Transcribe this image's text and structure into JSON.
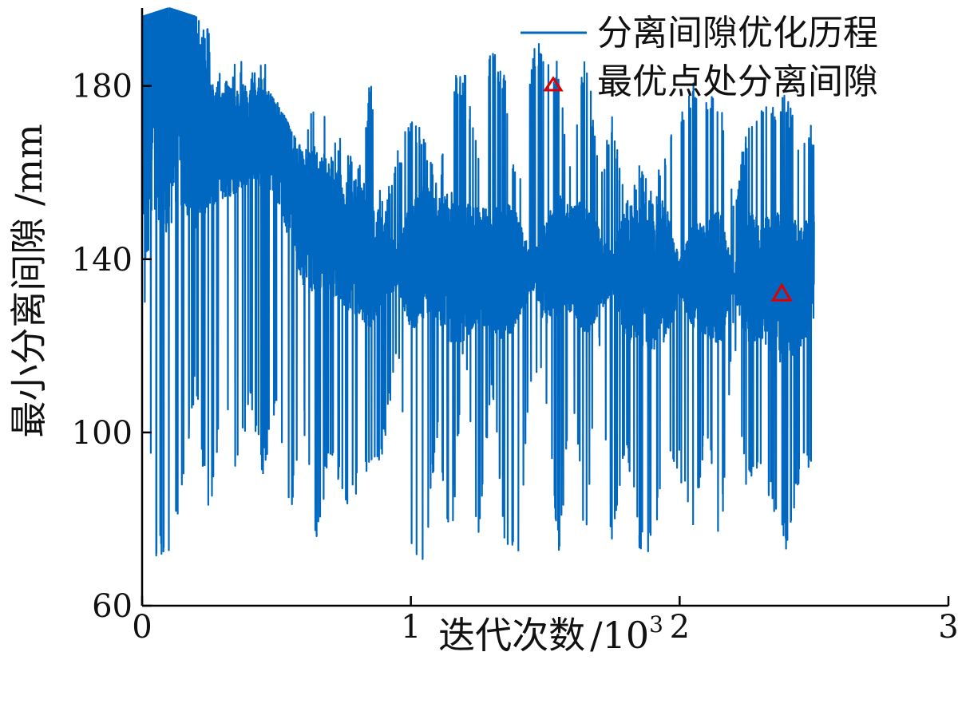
{
  "chart_data": {
    "type": "line",
    "title": "",
    "xlabel": "迭代次数",
    "xlabel_suffix": "/10",
    "xlabel_exponent": "3",
    "ylabel": "最小分离间隙 /mm",
    "xlim": [
      0,
      3
    ],
    "ylim": [
      60,
      198
    ],
    "xticks": [
      0,
      1,
      2,
      3
    ],
    "yticks": [
      60,
      100,
      140,
      180
    ],
    "grid": false,
    "legend_position": "top-right",
    "series": [
      {
        "name": "分离间隙优化历程",
        "kind": "line",
        "color": "#0068c0",
        "x": [
          0.0,
          0.05,
          0.1,
          0.15,
          0.2,
          0.25,
          0.3,
          0.35,
          0.4,
          0.45,
          0.5,
          0.55,
          0.6,
          0.65,
          0.7,
          0.75,
          0.8,
          0.85,
          0.9,
          0.95,
          1.0,
          1.05,
          1.1,
          1.15,
          1.2,
          1.25,
          1.3,
          1.35,
          1.4,
          1.45,
          1.5,
          1.55,
          1.6,
          1.65,
          1.7,
          1.75,
          1.8,
          1.85,
          1.9,
          1.95,
          2.0,
          2.05,
          2.1,
          2.15,
          2.2,
          2.25,
          2.3,
          2.35,
          2.4,
          2.45,
          2.5
        ],
        "y": [
          193,
          185,
          188,
          192,
          175,
          166,
          168,
          167,
          170,
          168,
          165,
          158,
          150,
          148,
          147,
          145,
          143,
          140,
          139,
          138,
          139,
          142,
          140,
          138,
          137,
          138,
          138,
          137,
          138,
          136,
          137,
          141,
          140,
          138,
          137,
          137,
          137,
          136,
          137,
          137,
          136,
          136,
          136,
          136,
          135,
          136,
          135,
          134,
          134,
          133,
          140
        ],
        "upper": [
          196,
          197,
          198,
          197,
          196,
          193,
          180,
          188,
          182,
          188,
          180,
          170,
          165,
          182,
          169,
          168,
          160,
          182,
          152,
          165,
          175,
          169,
          158,
          182,
          184,
          168,
          190,
          182,
          154,
          190,
          190,
          185,
          159,
          192,
          160,
          175,
          153,
          164,
          155,
          168,
          172,
          183,
          178,
          180,
          155,
          170,
          174,
          178,
          178,
          168,
          172
        ],
        "lower": [
          140,
          70,
          72,
          85,
          110,
          75,
          108,
          90,
          105,
          90,
          105,
          80,
          102,
          72,
          95,
          82,
          85,
          90,
          95,
          120,
          72,
          70,
          98,
          72,
          120,
          70,
          110,
          73,
          70,
          113,
          110,
          70,
          108,
          72,
          120,
          70,
          98,
          71,
          72,
          95,
          90,
          75,
          100,
          70,
          122,
          85,
          93,
          80,
          72,
          90,
          88
        ],
        "density": [
          55,
          40,
          42,
          42,
          28,
          14,
          14,
          12,
          12,
          12,
          12,
          14,
          16,
          18,
          16,
          16,
          16,
          16,
          10,
          4,
          16,
          16,
          14,
          18,
          16,
          14,
          14,
          18,
          12,
          4,
          12,
          14,
          12,
          16,
          10,
          4,
          16,
          16,
          18,
          16,
          4,
          12,
          14,
          16,
          2,
          16,
          14,
          18,
          18,
          14,
          14
        ]
      },
      {
        "name": "最优点处分离间隙",
        "kind": "marker",
        "marker": "triangle",
        "color": "#e00000",
        "x": [
          2.38
        ],
        "y": [
          132
        ]
      }
    ]
  }
}
